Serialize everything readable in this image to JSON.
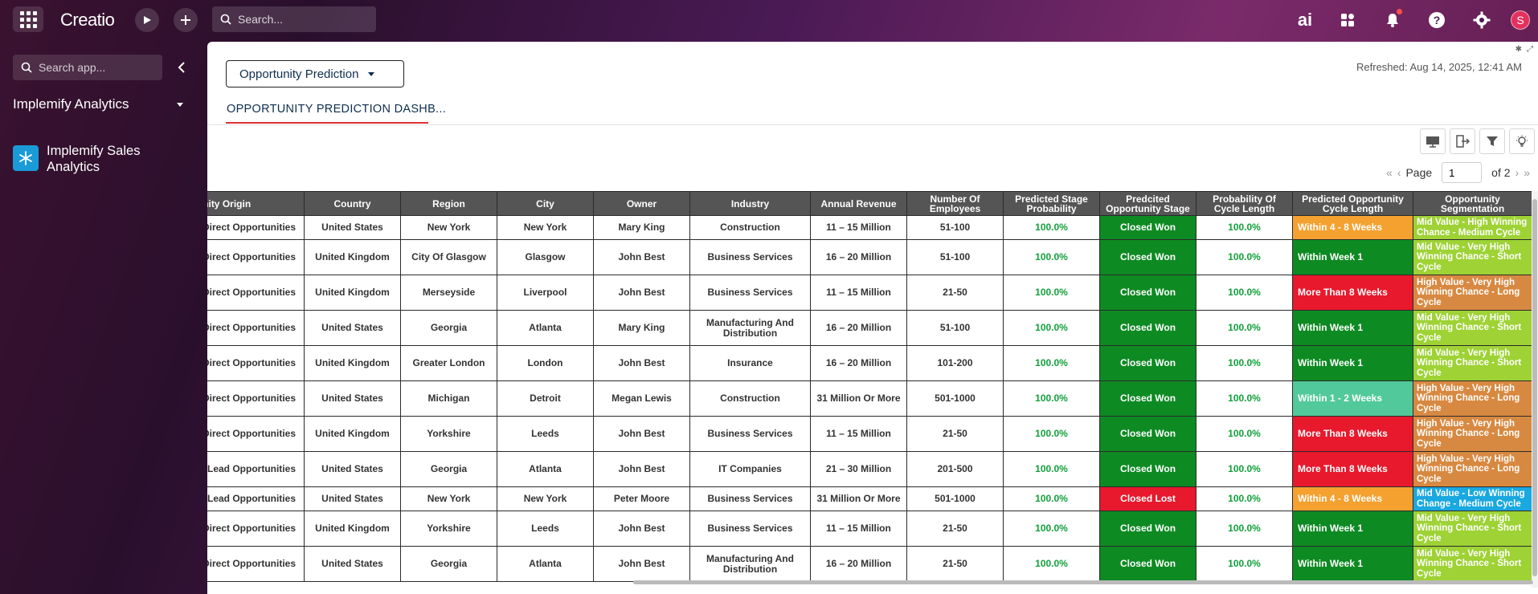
{
  "topbar": {
    "logo": "Creatio",
    "search_placeholder": "Search...",
    "ai_label": "ai",
    "avatar_initial": "S",
    "icons": [
      "apps-grid-icon",
      "play-icon",
      "plus-icon",
      "search-icon",
      "ai-icon",
      "widgets-icon",
      "bell-icon",
      "help-icon",
      "gear-icon"
    ]
  },
  "sidebar": {
    "search_placeholder": "Search app...",
    "workspace_title": "Implemify Analytics",
    "apps": [
      {
        "label_line1": "Implemify Sales",
        "label_line2": "Analytics",
        "icon": "snowflake-icon"
      }
    ]
  },
  "dashboard": {
    "selector_label": "Opportunity Prediction",
    "refreshed": "Refreshed: Aug 14, 2025, 12:41 AM",
    "tab_label": "OPPORTUNITY PREDICTION DASHB...",
    "pager": {
      "page_label": "Page",
      "page_value": "1",
      "of_label": "of 2"
    }
  },
  "table": {
    "columns": [
      "Opportunity Origin",
      "Country",
      "Region",
      "City",
      "Owner",
      "Industry",
      "Annual Revenue",
      "Number Of Employees",
      "Predicted Stage Probability",
      "Predcited Opportunity Stage",
      "Probability Of Cycle Length",
      "Predicted Opportunity Cycle Length",
      "Opportunity Segmentation"
    ],
    "rows": [
      {
        "origin": "Direct Opportunities",
        "country": "United States",
        "region": "New York",
        "city": "New York",
        "owner": "Mary King",
        "industry": "Construction",
        "revenue": "11 – 15 Million",
        "employees": "51-100",
        "stage_prob": "100.0%",
        "stage": "Closed Won",
        "cycle_prob": "100.0%",
        "cycle": "Within 4 - 8 Weeks",
        "segment": "Mid Value - High Winning Chance - Medium Cycle"
      },
      {
        "origin": "Direct Opportunities",
        "country": "United Kingdom",
        "region": "City Of Glasgow",
        "city": "Glasgow",
        "owner": "John Best",
        "industry": "Business Services",
        "revenue": "16 – 20 Million",
        "employees": "51-100",
        "stage_prob": "100.0%",
        "stage": "Closed Won",
        "cycle_prob": "100.0%",
        "cycle": "Within Week 1",
        "segment": "Mid Value - Very High Winning Chance - Short Cycle"
      },
      {
        "origin": "Direct Opportunities",
        "country": "United Kingdom",
        "region": "Merseyside",
        "city": "Liverpool",
        "owner": "John Best",
        "industry": "Business Services",
        "revenue": "11 – 15 Million",
        "employees": "21-50",
        "stage_prob": "100.0%",
        "stage": "Closed Won",
        "cycle_prob": "100.0%",
        "cycle": "More Than 8 Weeks",
        "segment": "High Value - Very High Winning Chance - Long Cycle"
      },
      {
        "origin": "Direct Opportunities",
        "country": "United States",
        "region": "Georgia",
        "city": "Atlanta",
        "owner": "Mary King",
        "industry": "Manufacturing And Distribution",
        "revenue": "16 – 20 Million",
        "employees": "51-100",
        "stage_prob": "100.0%",
        "stage": "Closed Won",
        "cycle_prob": "100.0%",
        "cycle": "Within Week 1",
        "segment": "Mid Value - Very High Winning Chance - Short Cycle"
      },
      {
        "origin": "Direct Opportunities",
        "country": "United Kingdom",
        "region": "Greater London",
        "city": "London",
        "owner": "John Best",
        "industry": "Insurance",
        "revenue": "16 – 20 Million",
        "employees": "101-200",
        "stage_prob": "100.0%",
        "stage": "Closed Won",
        "cycle_prob": "100.0%",
        "cycle": "Within Week 1",
        "segment": "Mid Value - Very High Winning Chance - Short Cycle"
      },
      {
        "origin": "Direct Opportunities",
        "country": "United States",
        "region": "Michigan",
        "city": "Detroit",
        "owner": "Megan Lewis",
        "industry": "Construction",
        "revenue": "31 Million Or More",
        "employees": "501-1000",
        "stage_prob": "100.0%",
        "stage": "Closed Won",
        "cycle_prob": "100.0%",
        "cycle": "Within 1 - 2 Weeks",
        "segment": "High Value - Very High Winning Chance - Long Cycle"
      },
      {
        "origin": "Direct Opportunities",
        "country": "United Kingdom",
        "region": "Yorkshire",
        "city": "Leeds",
        "owner": "John Best",
        "industry": "Business Services",
        "revenue": "11 – 15 Million",
        "employees": "21-50",
        "stage_prob": "100.0%",
        "stage": "Closed Won",
        "cycle_prob": "100.0%",
        "cycle": "More Than 8 Weeks",
        "segment": "High Value - Very High Winning Chance - Long Cycle"
      },
      {
        "origin": "Lead Opportunities",
        "country": "United States",
        "region": "Georgia",
        "city": "Atlanta",
        "owner": "John Best",
        "industry": "IT Companies",
        "revenue": "21 – 30 Million",
        "employees": "201-500",
        "stage_prob": "100.0%",
        "stage": "Closed Won",
        "cycle_prob": "100.0%",
        "cycle": "More Than 8 Weeks",
        "segment": "High Value - Very High Winning Chance - Long Cycle"
      },
      {
        "origin": "Lead Opportunities",
        "country": "United States",
        "region": "New York",
        "city": "New York",
        "owner": "Peter Moore",
        "industry": "Business Services",
        "revenue": "31 Million Or More",
        "employees": "501-1000",
        "stage_prob": "100.0%",
        "stage": "Closed Lost",
        "cycle_prob": "100.0%",
        "cycle": "Within 4 - 8 Weeks",
        "segment": "Mid Value - Low Winning Change - Medium Cycle"
      },
      {
        "origin": "Direct Opportunities",
        "country": "United Kingdom",
        "region": "Yorkshire",
        "city": "Leeds",
        "owner": "John Best",
        "industry": "Business Services",
        "revenue": "11 – 15 Million",
        "employees": "21-50",
        "stage_prob": "100.0%",
        "stage": "Closed Won",
        "cycle_prob": "100.0%",
        "cycle": "Within Week 1",
        "segment": "Mid Value - Very High Winning Chance - Short Cycle"
      },
      {
        "origin": "Direct Opportunities",
        "country": "United States",
        "region": "Georgia",
        "city": "Atlanta",
        "owner": "John Best",
        "industry": "Manufacturing And Distribution",
        "revenue": "16 – 20 Million",
        "employees": "21-50",
        "stage_prob": "100.0%",
        "stage": "Closed Won",
        "cycle_prob": "100.0%",
        "cycle": "Within Week 1",
        "segment": "Mid Value - Very High Winning Chance - Short Cycle"
      }
    ],
    "cycle_colors": {
      "Within 4 - 8 Weeks": "#f4a130",
      "Within Week 1": "#0e8a23",
      "More Than 8 Weeks": "#e8192c",
      "Within 1 - 2 Weeks": "#52c99a"
    },
    "segment_colors": {
      "Mid Value - High Winning Chance - Medium Cycle": "#9ed235",
      "Mid Value - Very High Winning Chance - Short Cycle": "#9ed235",
      "High Value - Very High Winning Chance - Long Cycle": "#d88941",
      "Mid Value - Low Winning Change - Medium Cycle": "#1aa8e0"
    },
    "stage_colors": {
      "Closed Won": "#0e8a23",
      "Closed Lost": "#e8192c"
    }
  }
}
